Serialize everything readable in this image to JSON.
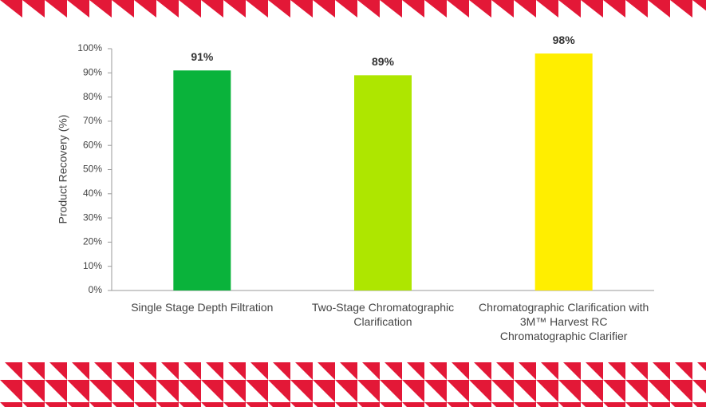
{
  "chart_data": {
    "type": "bar",
    "y_label": "Product Recovery (%)",
    "categories": [
      "Single Stage Depth Filtration",
      "Two-Stage Chromatographic Clarification",
      "Chromatographic Clarification with 3M™ Harvest RC Chromatographic Clarifier"
    ],
    "values": [
      91,
      89,
      98
    ],
    "value_labels": [
      "91%",
      "89%",
      "98%"
    ],
    "colors": [
      "#0ab33b",
      "#aee600",
      "#ffee00"
    ],
    "ylim": [
      0,
      100
    ],
    "yticks": [
      {
        "value": 0,
        "label": "0%"
      },
      {
        "value": 10,
        "label": "10%"
      },
      {
        "value": 20,
        "label": "20%"
      },
      {
        "value": 30,
        "label": "30%"
      },
      {
        "value": 40,
        "label": "40%"
      },
      {
        "value": 50,
        "label": "50%"
      },
      {
        "value": 60,
        "label": "60%"
      },
      {
        "value": 70,
        "label": "70%"
      },
      {
        "value": 80,
        "label": "80%"
      },
      {
        "value": 90,
        "label": "90%"
      },
      {
        "value": 100,
        "label": "100%"
      }
    ],
    "grid": false
  }
}
